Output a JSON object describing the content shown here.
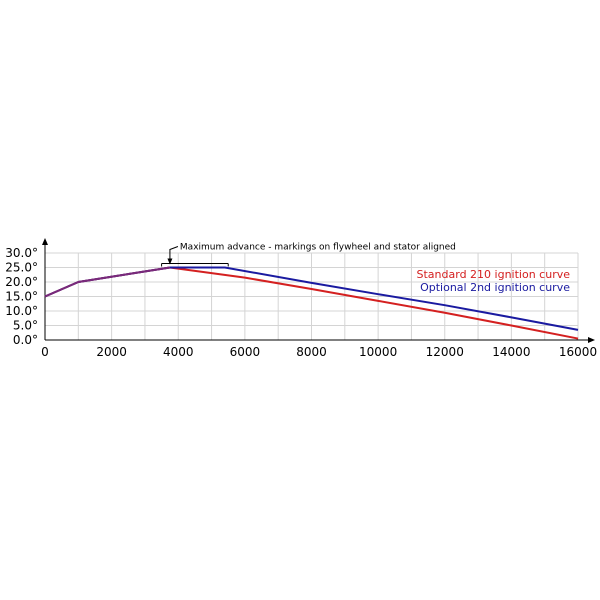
{
  "chart_data": {
    "type": "line",
    "title": "",
    "xlabel": "",
    "ylabel": "",
    "xlim": [
      0,
      16000
    ],
    "ylim": [
      0,
      30
    ],
    "x_ticks": [
      0,
      2000,
      4000,
      6000,
      8000,
      10000,
      12000,
      14000,
      16000
    ],
    "x_tick_labels": [
      "0",
      "2000",
      "4000",
      "6000",
      "8000",
      "10000",
      "12000",
      "14000",
      "16000"
    ],
    "y_ticks": [
      0,
      5,
      10,
      15,
      20,
      25,
      30
    ],
    "y_tick_labels": [
      "0.0°",
      "5.0°",
      "10.0°",
      "15.0°",
      "20.0°",
      "25.0°",
      "30.0°"
    ],
    "grid": true,
    "legend_placement": "right",
    "annotation": {
      "text": "Maximum advance - markings on flywheel and stator aligned",
      "x_start": 3500,
      "x_end": 5500,
      "y": 25
    },
    "series": [
      {
        "name": "Standard 210 ignition curve",
        "color": "#d42020",
        "x": [
          0,
          1000,
          3750,
          6000,
          8000,
          10000,
          12000,
          14000,
          16000
        ],
        "y": [
          15,
          20,
          25,
          21.5,
          17.6,
          13.5,
          9.4,
          5.0,
          0.5
        ]
      },
      {
        "name": "Optional 2nd ignition curve",
        "color": "#1a1aa0",
        "x": [
          0,
          1000,
          3750,
          5400,
          8000,
          10000,
          12000,
          14000,
          16000
        ],
        "y": [
          15,
          20,
          25,
          25,
          19.7,
          15.8,
          12.0,
          7.8,
          3.5
        ]
      }
    ]
  }
}
